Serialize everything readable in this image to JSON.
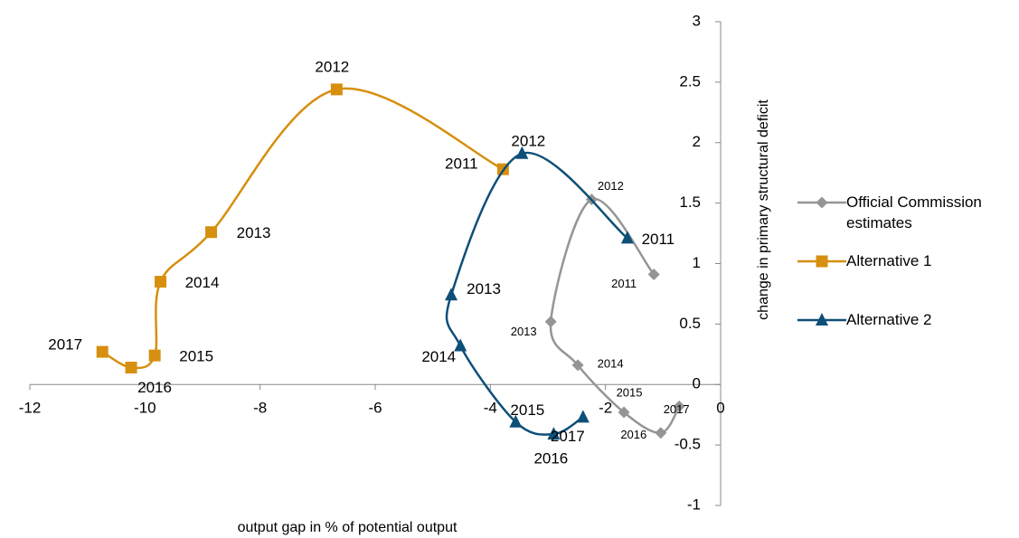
{
  "chart_data": {
    "type": "scatter",
    "x_label": "output gap in % of potential output",
    "y_label": "change in primary structural deficit",
    "xlim": [
      -12,
      0
    ],
    "xticks": [
      -12,
      -10,
      -8,
      -6,
      -4,
      -2,
      0
    ],
    "ylim": [
      -1,
      3
    ],
    "yticks": [
      -1,
      -0.5,
      0,
      0.5,
      1,
      1.5,
      2,
      2.5,
      3
    ],
    "series": [
      {
        "name": "Official Commission estimates",
        "color": "#959595",
        "marker": "diamond",
        "labels": [
          "2011",
          "2012",
          "2013",
          "2014",
          "2015",
          "2016",
          "2017"
        ],
        "x": [
          -1.16,
          -2.24,
          -2.95,
          -2.48,
          -1.68,
          -1.04,
          -0.72
        ],
        "values": [
          0.91,
          1.53,
          0.52,
          0.16,
          -0.23,
          -0.4,
          -0.18
        ]
      },
      {
        "name": "Alternative 1",
        "color": "#d68f0f",
        "marker": "square",
        "labels": [
          "2011",
          "2012",
          "2013",
          "2014",
          "2015",
          "2016",
          "2017"
        ],
        "x": [
          -3.78,
          -6.67,
          -8.85,
          -9.73,
          -9.83,
          -10.24,
          -10.74
        ],
        "values": [
          1.78,
          2.44,
          1.26,
          0.85,
          0.24,
          0.14,
          0.27
        ]
      },
      {
        "name": "Alternative 2",
        "color": "#0e4f78",
        "marker": "triangle",
        "labels": [
          "2011",
          "2012",
          "2013",
          "2014",
          "2015",
          "2016",
          "2017"
        ],
        "x": [
          -1.62,
          -3.45,
          -4.68,
          -4.52,
          -3.56,
          -2.9,
          -2.39
        ],
        "values": [
          1.21,
          1.91,
          0.74,
          0.32,
          -0.31,
          -0.41,
          -0.27
        ]
      }
    ]
  }
}
